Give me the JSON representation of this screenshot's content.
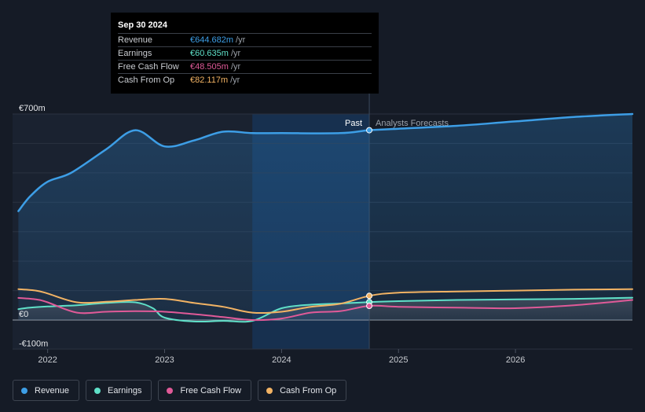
{
  "tooltip": {
    "date": "Sep 30 2024",
    "rows": [
      {
        "label": "Revenue",
        "value": "€644.682m",
        "unit": "/yr",
        "color": "#3d9ee6"
      },
      {
        "label": "Earnings",
        "value": "€60.635m",
        "unit": "/yr",
        "color": "#5fe0c8"
      },
      {
        "label": "Free Cash Flow",
        "value": "€48.505m",
        "unit": "/yr",
        "color": "#e05a98"
      },
      {
        "label": "Cash From Op",
        "value": "€82.117m",
        "unit": "/yr",
        "color": "#f2b364"
      }
    ]
  },
  "chart_data": {
    "type": "line",
    "title": "",
    "xlabel": "",
    "ylabel": "",
    "xlim": [
      2021.7,
      2027.0
    ],
    "ylim": [
      -100,
      700
    ],
    "x_ticks": [
      {
        "value": 2022,
        "label": "2022"
      },
      {
        "value": 2023,
        "label": "2023"
      },
      {
        "value": 2024,
        "label": "2024"
      },
      {
        "value": 2025,
        "label": "2025"
      },
      {
        "value": 2026,
        "label": "2026"
      }
    ],
    "y_ticks": [
      {
        "value": 700,
        "label": "€700m"
      },
      {
        "value": 0,
        "label": "€0"
      },
      {
        "value": -100,
        "label": "-€100m"
      }
    ],
    "gridlines_y": [
      700,
      600,
      500,
      400,
      300,
      200,
      100,
      0
    ],
    "divider_x": 2024.75,
    "highlight_start_x": 2023.75,
    "past_label": "Past",
    "forecast_label": "Analysts Forecasts",
    "series": [
      {
        "name": "Revenue",
        "color": "#3d9ee6",
        "area": true,
        "points": [
          [
            2021.75,
            370
          ],
          [
            2021.85,
            420
          ],
          [
            2022.0,
            470
          ],
          [
            2022.2,
            500
          ],
          [
            2022.5,
            580
          ],
          [
            2022.75,
            645
          ],
          [
            2023.0,
            590
          ],
          [
            2023.25,
            610
          ],
          [
            2023.5,
            640
          ],
          [
            2023.75,
            635
          ],
          [
            2024.0,
            635
          ],
          [
            2024.5,
            635
          ],
          [
            2024.75,
            645
          ],
          [
            2025.0,
            650
          ],
          [
            2025.5,
            660
          ],
          [
            2026.0,
            675
          ],
          [
            2026.5,
            690
          ],
          [
            2027.0,
            700
          ]
        ]
      },
      {
        "name": "Earnings",
        "color": "#5fe0c8",
        "area": false,
        "points": [
          [
            2021.75,
            37
          ],
          [
            2021.85,
            42
          ],
          [
            2022.0,
            46
          ],
          [
            2022.25,
            50
          ],
          [
            2022.5,
            58
          ],
          [
            2022.75,
            60
          ],
          [
            2022.9,
            40
          ],
          [
            2023.0,
            8
          ],
          [
            2023.25,
            -5
          ],
          [
            2023.5,
            -3
          ],
          [
            2023.75,
            -3
          ],
          [
            2024.0,
            40
          ],
          [
            2024.25,
            52
          ],
          [
            2024.5,
            56
          ],
          [
            2024.75,
            61
          ],
          [
            2025.0,
            64
          ],
          [
            2025.5,
            68
          ],
          [
            2026.0,
            70
          ],
          [
            2026.5,
            72
          ],
          [
            2027.0,
            76
          ]
        ]
      },
      {
        "name": "Free Cash Flow",
        "color": "#e05a98",
        "area": false,
        "points": [
          [
            2021.75,
            75
          ],
          [
            2021.9,
            70
          ],
          [
            2022.0,
            60
          ],
          [
            2022.25,
            25
          ],
          [
            2022.5,
            28
          ],
          [
            2022.75,
            30
          ],
          [
            2023.0,
            28
          ],
          [
            2023.25,
            20
          ],
          [
            2023.5,
            10
          ],
          [
            2023.75,
            0
          ],
          [
            2024.0,
            5
          ],
          [
            2024.25,
            25
          ],
          [
            2024.5,
            30
          ],
          [
            2024.75,
            48
          ],
          [
            2025.0,
            45
          ],
          [
            2025.5,
            42
          ],
          [
            2026.0,
            40
          ],
          [
            2026.5,
            50
          ],
          [
            2027.0,
            68
          ]
        ]
      },
      {
        "name": "Cash From Op",
        "color": "#f2b364",
        "area": false,
        "points": [
          [
            2021.75,
            105
          ],
          [
            2021.9,
            100
          ],
          [
            2022.0,
            90
          ],
          [
            2022.25,
            60
          ],
          [
            2022.5,
            62
          ],
          [
            2022.75,
            68
          ],
          [
            2023.0,
            72
          ],
          [
            2023.25,
            58
          ],
          [
            2023.5,
            45
          ],
          [
            2023.75,
            25
          ],
          [
            2024.0,
            28
          ],
          [
            2024.25,
            45
          ],
          [
            2024.5,
            55
          ],
          [
            2024.75,
            82
          ],
          [
            2025.0,
            93
          ],
          [
            2025.5,
            97
          ],
          [
            2026.0,
            100
          ],
          [
            2026.5,
            103
          ],
          [
            2027.0,
            105
          ]
        ]
      }
    ],
    "legend": [
      {
        "label": "Revenue",
        "color": "#3d9ee6"
      },
      {
        "label": "Earnings",
        "color": "#5fe0c8"
      },
      {
        "label": "Free Cash Flow",
        "color": "#e05a98"
      },
      {
        "label": "Cash From Op",
        "color": "#f2b364"
      }
    ]
  }
}
